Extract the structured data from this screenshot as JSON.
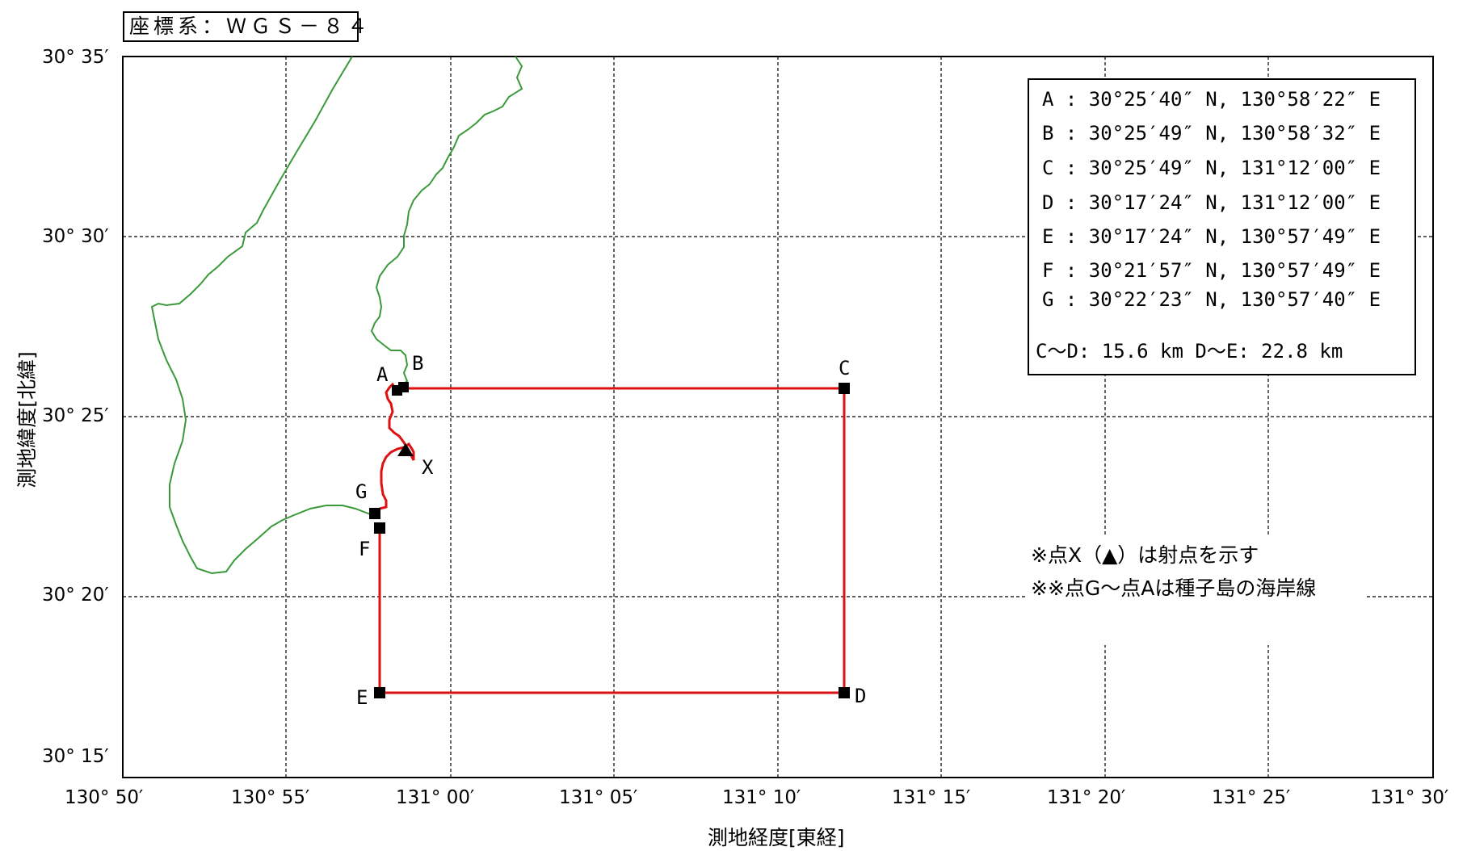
{
  "crs_label": "座標系：ＷＧＳ－８４",
  "axes": {
    "x_title": "測地経度[東経]",
    "y_title": "測地緯度[北緯]",
    "x_ticks": [
      "130° 50′",
      "130° 55′",
      "131° 00′",
      "131° 05′",
      "131° 10′",
      "131° 15′",
      "131° 20′",
      "131° 25′",
      "131° 30′"
    ],
    "y_ticks": [
      "30° 35′",
      "30° 30′",
      "30° 25′",
      "30° 20′",
      "30° 15′"
    ]
  },
  "legend": {
    "rows": [
      "A : 30°25′40″ N, 130°58′22″ E",
      "B : 30°25′49″ N, 130°58′32″ E",
      "C : 30°25′49″ N, 131°12′00″ E",
      "D : 30°17′24″ N, 131°12′00″ E",
      "E : 30°17′24″ N, 130°57′49″ E",
      "F : 30°21′57″ N, 130°57′49″ E",
      "G : 30°22′23″ N, 130°57′40″ E"
    ],
    "distances": "C～D: 15.6 km  D～E: 22.8 km"
  },
  "notes": [
    "※点X（▲）は射点を示す",
    "※※点G～点Aは種子島の海岸線"
  ],
  "points": {
    "A": {
      "label": "A",
      "lat": "30°25′40″",
      "lon": "130°58′22″"
    },
    "B": {
      "label": "B",
      "lat": "30°25′49″",
      "lon": "130°58′32″"
    },
    "C": {
      "label": "C",
      "lat": "30°25′49″",
      "lon": "131°12′00″"
    },
    "D": {
      "label": "D",
      "lat": "30°17′24″",
      "lon": "131°12′00″"
    },
    "E": {
      "label": "E",
      "lat": "30°17′24″",
      "lon": "130°57′49″"
    },
    "F": {
      "label": "F",
      "lat": "30°21′57″",
      "lon": "130°57′49″"
    },
    "G": {
      "label": "G",
      "lat": "30°22′23″",
      "lon": "130°57′40″"
    },
    "X": {
      "label": "X"
    }
  },
  "colors": {
    "area_boundary": "#dd1111",
    "coastline": "#3a9a3a",
    "grid": "#000000",
    "marker": "#000000"
  }
}
